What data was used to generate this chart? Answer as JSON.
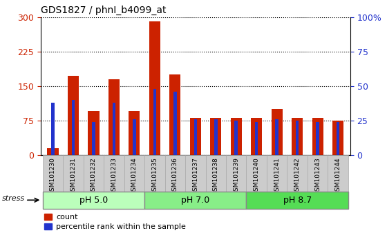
{
  "title": "GDS1827 / phnI_b4099_at",
  "samples": [
    "GSM101230",
    "GSM101231",
    "GSM101232",
    "GSM101233",
    "GSM101234",
    "GSM101235",
    "GSM101236",
    "GSM101237",
    "GSM101238",
    "GSM101239",
    "GSM101240",
    "GSM101241",
    "GSM101242",
    "GSM101243",
    "GSM101244"
  ],
  "count_values": [
    15,
    172,
    95,
    165,
    95,
    290,
    175,
    80,
    80,
    80,
    80,
    100,
    80,
    80,
    75
  ],
  "percentile_values": [
    38,
    40,
    24,
    38,
    26,
    48,
    46,
    26,
    26,
    25,
    24,
    26,
    25,
    24,
    24
  ],
  "groups": [
    {
      "label": "pH 5.0",
      "start": 0,
      "end": 5,
      "color": "#bbffbb"
    },
    {
      "label": "pH 7.0",
      "start": 5,
      "end": 10,
      "color": "#88ee88"
    },
    {
      "label": "pH 8.7",
      "start": 10,
      "end": 15,
      "color": "#55dd55"
    }
  ],
  "stress_label": "stress",
  "ylim_left": [
    0,
    300
  ],
  "ylim_right": [
    0,
    100
  ],
  "yticks_left": [
    0,
    75,
    150,
    225,
    300
  ],
  "yticks_right": [
    0,
    25,
    50,
    75,
    100
  ],
  "bar_color_red": "#cc2200",
  "bar_color_blue": "#2233cc",
  "bar_width": 0.55,
  "bg_color": "#ffffff",
  "tick_label_color_left": "#cc2200",
  "tick_label_color_right": "#2233cc",
  "xlabel_area_color": "#cccccc"
}
